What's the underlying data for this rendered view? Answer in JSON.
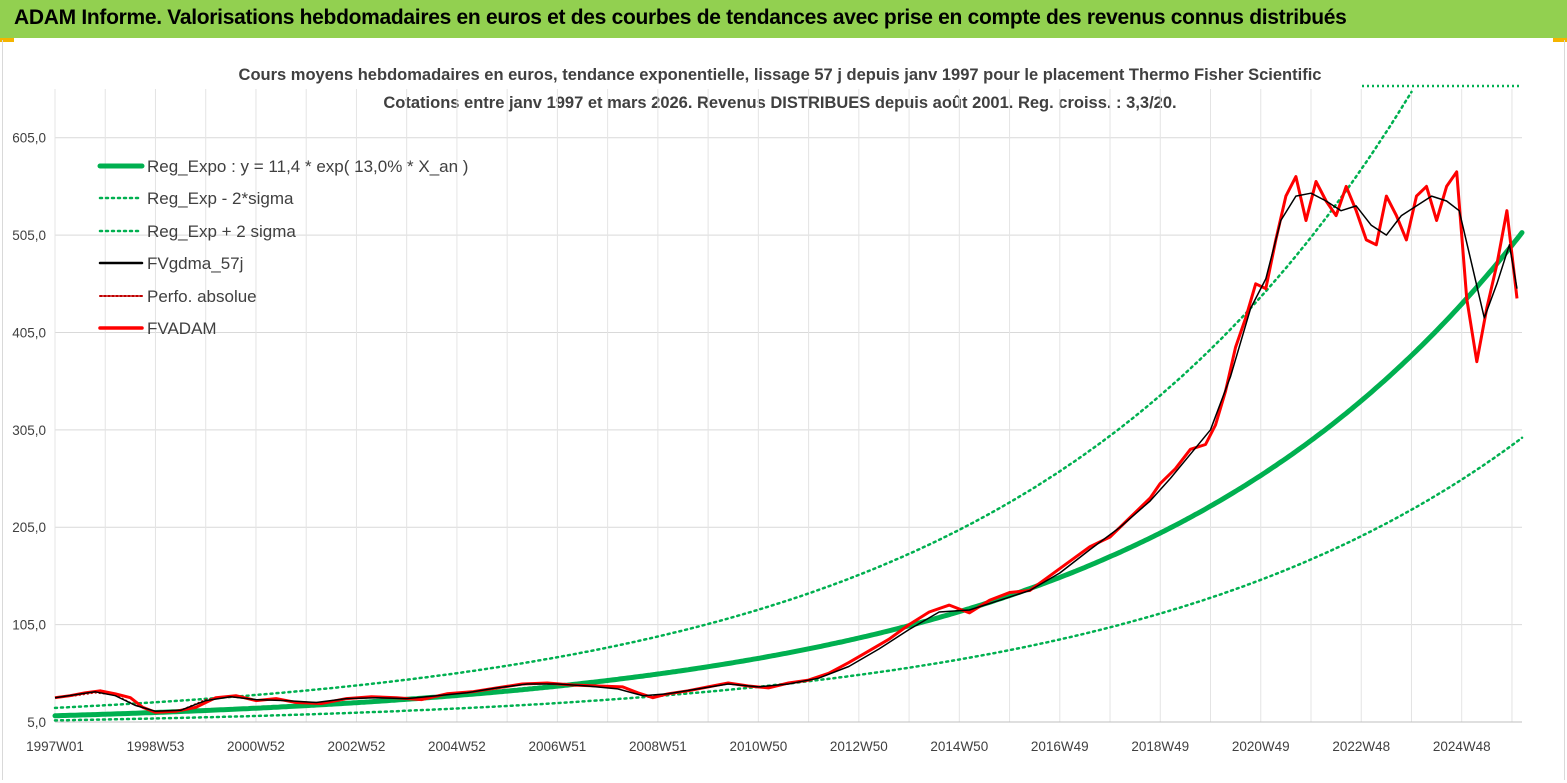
{
  "banner": {
    "title": "ADAM Informe. Valorisations hebdomadaires en euros et des courbes de tendances avec prise en compte des revenus connus distribués"
  },
  "colors": {
    "banner": "#92d050",
    "reg_expo": "#00b050",
    "sigma": "#00b050",
    "fvgdma": "#000000",
    "perfo": "#c00000",
    "fvadam": "#ff0000"
  },
  "chart_data": {
    "type": "line",
    "title": "Cours moyens hebdomadaires en euros, tendance exponentielle, lissage 57 j depuis janv 1997 pour le placement Thermo Fisher Scientific",
    "subtitle": "Cotations entre janv 1997 et mars 2026. Revenus DISTRIBUES depuis août 2001. Reg. croiss. : 3,3/20.",
    "x_ticks": [
      "1997W01",
      "1998W53",
      "2000W52",
      "2002W52",
      "2004W52",
      "2006W51",
      "2008W51",
      "2010W50",
      "2012W50",
      "2014W50",
      "2016W49",
      "2018W49",
      "2020W49",
      "2022W48",
      "2024W48"
    ],
    "y_ticks": [
      "5,0",
      "105,0",
      "205,0",
      "305,0",
      "405,0",
      "505,0",
      "605,0"
    ],
    "ylim": [
      5,
      655
    ],
    "xlim": [
      1997.0,
      2026.2
    ],
    "grid": true,
    "legend_position": "top-left",
    "regression": {
      "a": 11.4,
      "b": 0.13,
      "sigma_factor": 1.71
    },
    "legend": [
      {
        "label": "Reg_Expo : y = 11,4 * exp( 13,0% *  X_an )",
        "style": "thick"
      },
      {
        "label": "Reg_Exp - 2*sigma",
        "style": "dotted"
      },
      {
        "label": "Reg_Exp + 2 sigma",
        "style": "dotted"
      },
      {
        "label": "FVgdma_57j",
        "style": "solid"
      },
      {
        "label": "Perfo. absolue",
        "style": "dotted"
      },
      {
        "label": "FVADAM",
        "style": "solid"
      }
    ],
    "series": [
      {
        "name": "FVADAM",
        "x": [
          1997.0,
          1997.3,
          1997.6,
          1997.9,
          1998.2,
          1998.5,
          1998.75,
          1999.0,
          1999.4,
          1999.8,
          2000.2,
          2000.6,
          2001.0,
          2001.4,
          2001.8,
          2002.3,
          2002.8,
          2003.3,
          2003.8,
          2004.3,
          2004.8,
          2005.3,
          2005.8,
          2006.3,
          2006.8,
          2007.3,
          2007.8,
          2008.3,
          2008.6,
          2008.9,
          2009.2,
          2009.6,
          2010.0,
          2010.4,
          2010.8,
          2011.2,
          2011.6,
          2012.0,
          2012.4,
          2012.8,
          2013.2,
          2013.6,
          2014.0,
          2014.4,
          2014.8,
          2015.2,
          2015.6,
          2016.0,
          2016.4,
          2016.8,
          2017.2,
          2017.6,
          2018.0,
          2018.4,
          2018.8,
          2019.0,
          2019.3,
          2019.6,
          2019.9,
          2020.1,
          2020.3,
          2020.5,
          2020.7,
          2020.9,
          2021.1,
          2021.3,
          2021.5,
          2021.7,
          2021.9,
          2022.1,
          2022.3,
          2022.5,
          2022.7,
          2022.9,
          2023.1,
          2023.3,
          2023.5,
          2023.7,
          2023.9,
          2024.1,
          2024.3,
          2024.5,
          2024.7,
          2024.9,
          2025.1,
          2025.3,
          2025.5,
          2025.7,
          2025.9,
          2026.1
        ],
        "y": [
          30,
          32,
          35,
          37,
          34,
          30,
          20,
          15,
          16,
          20,
          30,
          32,
          27,
          29,
          25,
          24,
          29,
          31,
          30,
          28,
          34,
          36,
          40,
          44,
          45,
          43,
          42,
          41,
          35,
          30,
          34,
          37,
          41,
          45,
          42,
          40,
          45,
          48,
          55,
          66,
          78,
          90,
          105,
          118,
          125,
          117,
          130,
          138,
          140,
          155,
          170,
          185,
          195,
          215,
          235,
          250,
          265,
          285,
          290,
          310,
          345,
          390,
          420,
          455,
          450,
          500,
          545,
          565,
          520,
          560,
          540,
          525,
          555,
          530,
          500,
          495,
          545,
          525,
          500,
          545,
          555,
          520,
          555,
          570,
          440,
          375,
          430,
          475,
          530,
          440
        ]
      },
      {
        "name": "FVgdma_57j",
        "x": [
          1997.0,
          1997.4,
          1997.8,
          1998.2,
          1998.6,
          1999.0,
          1999.5,
          2000.0,
          2000.5,
          2001.0,
          2001.6,
          2002.2,
          2002.8,
          2003.4,
          2004.0,
          2004.6,
          2005.2,
          2005.8,
          2006.4,
          2007.0,
          2007.6,
          2008.2,
          2008.7,
          2009.2,
          2009.8,
          2010.4,
          2011.0,
          2011.6,
          2012.2,
          2012.8,
          2013.4,
          2014.0,
          2014.6,
          2015.2,
          2015.8,
          2016.4,
          2017.0,
          2017.6,
          2018.2,
          2018.8,
          2019.2,
          2019.6,
          2020.0,
          2020.4,
          2020.8,
          2021.1,
          2021.4,
          2021.7,
          2022.0,
          2022.3,
          2022.6,
          2022.9,
          2023.2,
          2023.5,
          2023.8,
          2024.1,
          2024.4,
          2024.7,
          2024.95,
          2025.2,
          2025.45,
          2025.7,
          2025.95,
          2026.1
        ],
        "y": [
          30,
          33,
          36,
          32,
          22,
          16,
          17,
          27,
          31,
          28,
          27,
          25,
          29,
          30,
          29,
          32,
          35,
          40,
          44,
          44,
          42,
          39,
          32,
          34,
          39,
          44,
          41,
          44,
          50,
          62,
          80,
          100,
          118,
          120,
          130,
          140,
          158,
          182,
          205,
          232,
          255,
          280,
          305,
          360,
          430,
          460,
          520,
          545,
          548,
          540,
          530,
          535,
          515,
          505,
          525,
          535,
          545,
          540,
          530,
          475,
          420,
          455,
          495,
          450
        ]
      },
      {
        "name": "Perfo. absolue",
        "x": [
          1997.0,
          1997.4,
          1997.8,
          1998.2,
          1998.6,
          1999.0,
          1999.5,
          2000.0,
          2000.5,
          2001.0
        ],
        "y": [
          30,
          32,
          35,
          33,
          22,
          16,
          17,
          28,
          31,
          28
        ]
      }
    ]
  }
}
